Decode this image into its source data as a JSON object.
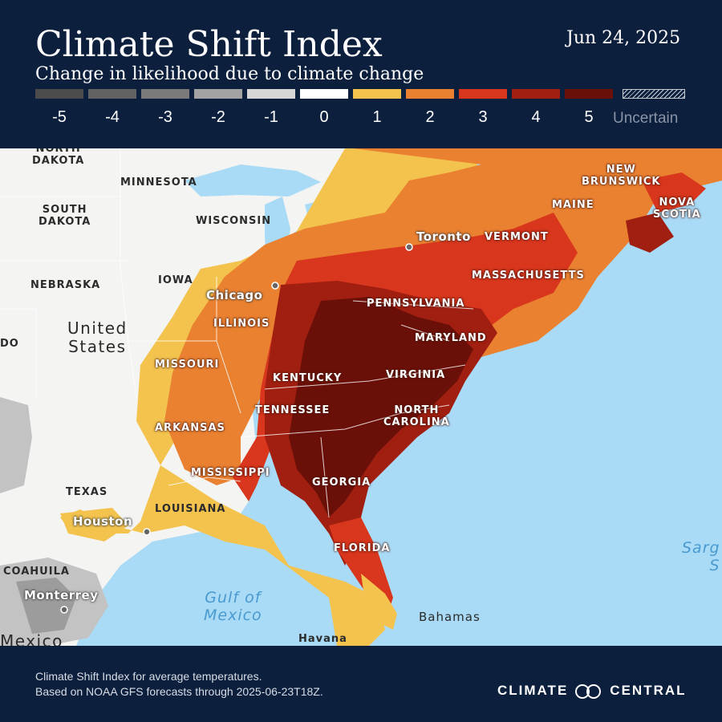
{
  "header": {
    "title": "Climate Shift Index",
    "subtitle": "Change in likelihood due to climate change",
    "date": "Jun 24, 2025"
  },
  "legend": {
    "items": [
      {
        "label": "-5",
        "color": "#4b4b4b"
      },
      {
        "label": "-4",
        "color": "#626262"
      },
      {
        "label": "-3",
        "color": "#7a7a7a"
      },
      {
        "label": "-2",
        "color": "#a3a3a3"
      },
      {
        "label": "-1",
        "color": "#d6d6d6"
      },
      {
        "label": "0",
        "color": "#ffffff"
      },
      {
        "label": "1",
        "color": "#f3c34e"
      },
      {
        "label": "2",
        "color": "#ea8131"
      },
      {
        "label": "3",
        "color": "#d8361d"
      },
      {
        "label": "4",
        "color": "#a01f11"
      },
      {
        "label": "5",
        "color": "#6b1008"
      }
    ],
    "uncertain_label": "Uncertain"
  },
  "map": {
    "states": {
      "north_dakota": "NORTH\nDAKOTA",
      "minnesota": "MINNESOTA",
      "south_dakota": "SOUTH\nDAKOTA",
      "wisconsin": "WISCONSIN",
      "nebraska": "NEBRASKA",
      "iowa": "IOWA",
      "illinois": "ILLINOIS",
      "missouri": "MISSOURI",
      "kentucky": "KENTUCKY",
      "tennessee": "TENNESSEE",
      "arkansas": "ARKANSAS",
      "mississippi": "MISSISSIPPI",
      "louisiana": "LOUISIANA",
      "texas": "TEXAS",
      "georgia": "GEORGIA",
      "florida": "FLORIDA",
      "north_carolina": "NORTH\nCAROLINA",
      "virginia": "VIRGINIA",
      "maryland": "MARYLAND",
      "pennsylvania": "PENNSYLVANIA",
      "massachusetts": "MASSACHUSETTS",
      "vermont": "VERMONT",
      "maine": "MAINE",
      "new_brunswick": "NEW\nBRUNSWICK",
      "nova_scotia": "NOVA\nSCOTIA",
      "colorado_partial": "DO",
      "coahuila": "COAHUILA"
    },
    "cities": {
      "chicago": "Chicago",
      "toronto": "Toronto",
      "houston": "Houston",
      "monterrey": "Monterrey",
      "havana": "Havana"
    },
    "countries": {
      "united_states": "United\nStates",
      "mexico": "Mexico",
      "bahamas": "Bahamas"
    },
    "water": {
      "gulf": "Gulf of\nMexico",
      "sargasso": "Sarg\nS"
    }
  },
  "footer": {
    "note_line1": "Climate Shift Index for average temperatures.",
    "note_line2": "Based on NOAA GFS forecasts through 2025-06-23T18Z.",
    "brand_left": "CLIMATE",
    "brand_right": "CENTRAL"
  }
}
